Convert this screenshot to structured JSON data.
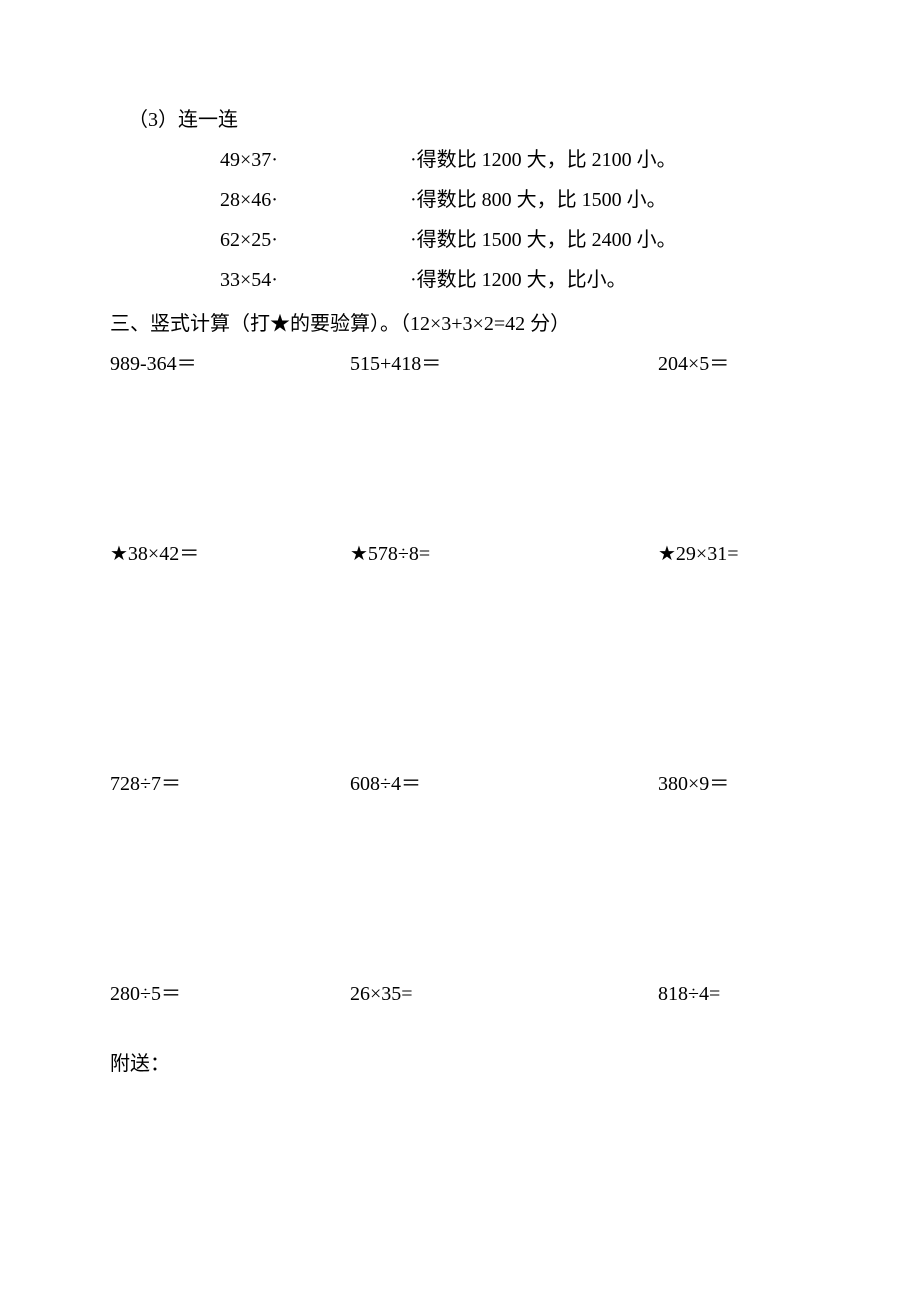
{
  "q3": {
    "title": "（3）连一连",
    "rows": [
      {
        "left": "49×37·",
        "right": "·得数比 1200 大，比 2100 小。"
      },
      {
        "left": "28×46·",
        "right": "·得数比 800 大，比 1500 小。"
      },
      {
        "left": "62×25·",
        "right": "·得数比 1500 大，比 2400 小。"
      },
      {
        "left": "33×54·",
        "right": "·得数比 1200 大，比小。"
      }
    ]
  },
  "section3": {
    "title": "三、竖式计算（打★的要验算）。（12×3+3×2=42 分）"
  },
  "calc": {
    "rows": [
      [
        {
          "text": "989-364＝"
        },
        {
          "text": "515+418＝"
        },
        {
          "text": "204×5＝"
        }
      ],
      [
        {
          "text": "★38×42＝"
        },
        {
          "text": "★578÷8="
        },
        {
          "text": "★29×31="
        }
      ],
      [
        {
          "text": "728÷7＝"
        },
        {
          "text": "608÷4＝"
        },
        {
          "text": "380×9＝"
        }
      ],
      [
        {
          "text": "280÷5＝"
        },
        {
          "text": "26×35="
        },
        {
          "text": "818÷4="
        }
      ]
    ]
  },
  "appendix": {
    "label": "附送："
  }
}
